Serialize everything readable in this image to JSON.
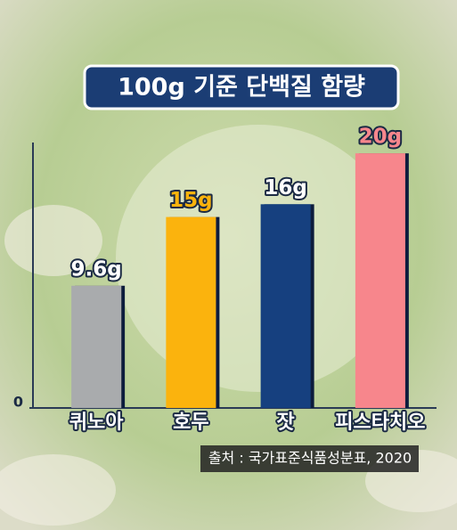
{
  "chart_data": {
    "type": "bar",
    "title": "100g 기준 단백질 함량",
    "categories": [
      "퀴노아",
      "호두",
      "잣",
      "피스타치오"
    ],
    "values": [
      9.6,
      15,
      16,
      20
    ],
    "value_labels": [
      "9.6g",
      "15g",
      "16g",
      "20g"
    ],
    "colors": [
      "#a9abad",
      "#fbb30c",
      "#12407f",
      "#f7868c"
    ],
    "label_colors": [
      "#ffffff",
      "#fbb30c",
      "#ffffff",
      "#f7868c"
    ],
    "ylim": [
      0,
      20.5
    ],
    "yticks": [
      0
    ],
    "source": "출처 : 국가표준식품성분표, 2020"
  }
}
